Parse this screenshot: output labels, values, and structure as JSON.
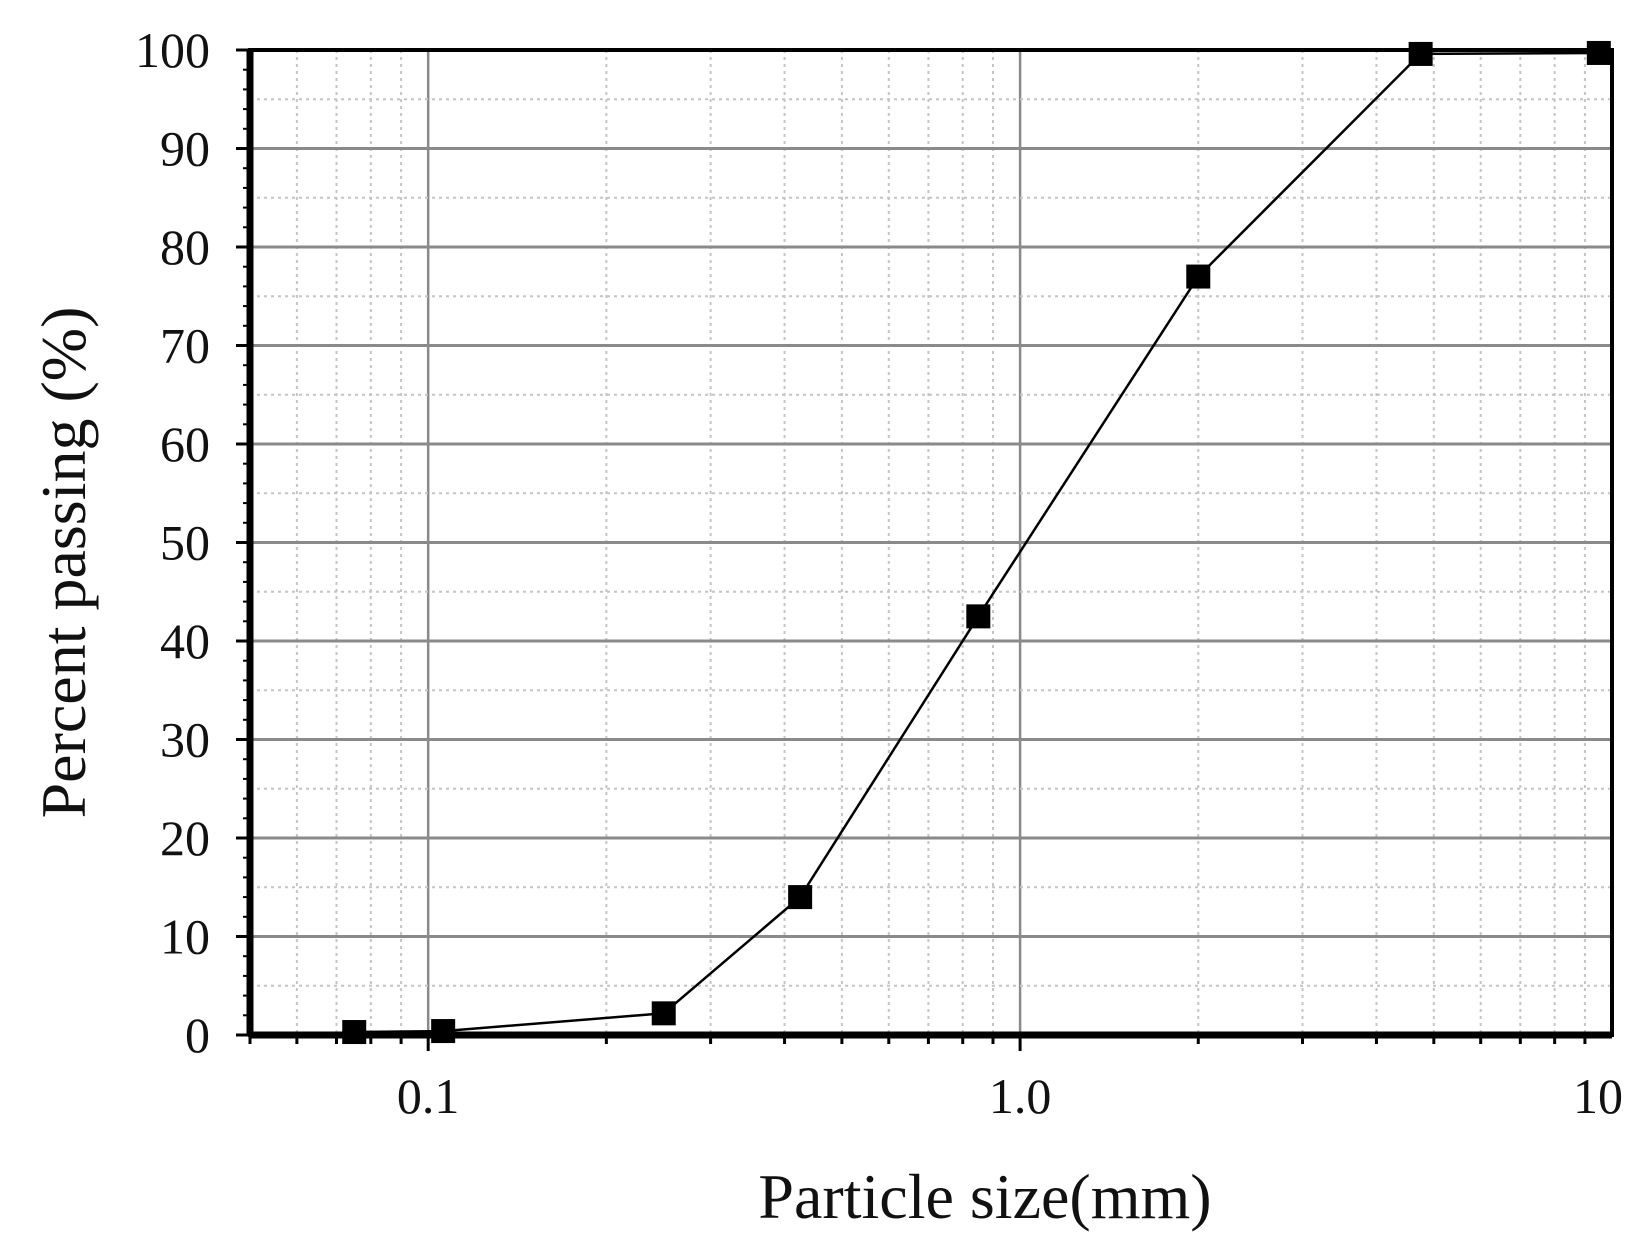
{
  "chart_data": {
    "type": "scatter",
    "title": "",
    "xlabel": "Particle size(mm)",
    "ylabel": "Percent passing (%)",
    "x_scale": "log",
    "xlim": [
      0.05,
      10
    ],
    "ylim": [
      0,
      100
    ],
    "x_ticks": [
      0.1,
      1,
      10
    ],
    "x_tick_labels": [
      "0.1",
      "1.0",
      "10"
    ],
    "y_ticks": [
      0,
      10,
      20,
      30,
      40,
      50,
      60,
      70,
      80,
      90,
      100
    ],
    "y_tick_labels": [
      "0",
      "10",
      "20",
      "30",
      "40",
      "50",
      "60",
      "70",
      "80",
      "90",
      "100"
    ],
    "grid": true,
    "legend": "none",
    "series": [
      {
        "marker": "square",
        "line": true,
        "color": "#000000",
        "x": [
          0.075,
          0.106,
          0.25,
          0.425,
          0.85,
          2.0,
          4.75,
          9.5
        ],
        "y": [
          0.3,
          0.4,
          2.2,
          14.0,
          42.5,
          77.0,
          99.6,
          99.7
        ]
      }
    ]
  }
}
